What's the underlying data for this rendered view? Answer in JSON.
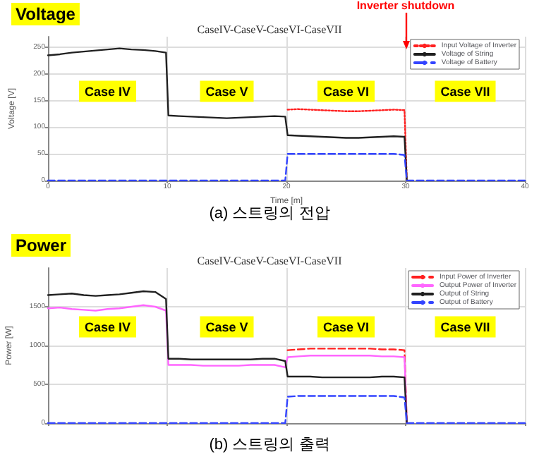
{
  "chart_data": [
    {
      "type": "line",
      "title": "CaseIV-CaseV-CaseVI-CaseVII",
      "xlabel": "Time [m]",
      "ylabel": "Voltage [V]",
      "xlim": [
        0,
        40
      ],
      "xticks": [
        0,
        10,
        20,
        30,
        40
      ],
      "ylim": [
        0,
        270
      ],
      "yticks": [
        0,
        50,
        100,
        150,
        200,
        250
      ],
      "grid": true,
      "legend": "right",
      "marker": "none",
      "x": [
        0,
        1,
        2,
        3,
        4,
        5,
        6,
        7,
        8,
        9,
        9.9,
        10.1,
        11,
        12,
        13,
        14,
        15,
        16,
        17,
        18,
        19,
        19.9,
        20.1,
        21,
        22,
        23,
        24,
        25,
        26,
        27,
        28,
        29,
        29.9,
        30.1,
        31,
        32,
        33,
        34,
        35,
        36,
        37,
        38,
        39,
        40
      ],
      "series": [
        {
          "name": "Input Voltage of Inverter",
          "color": "#ff2020",
          "line_style": "dotted",
          "values": [
            null,
            null,
            null,
            null,
            null,
            null,
            null,
            null,
            null,
            null,
            null,
            null,
            null,
            null,
            null,
            null,
            null,
            null,
            null,
            null,
            null,
            null,
            133,
            134,
            133,
            132,
            131,
            130,
            130,
            131,
            132,
            133,
            132,
            0,
            null,
            null,
            null,
            null,
            null,
            null,
            null,
            null,
            null,
            null
          ]
        },
        {
          "name": "Voltage of String",
          "color": "#202020",
          "line_style": "solid",
          "values": [
            235,
            237,
            240,
            242,
            244,
            246,
            248,
            246,
            245,
            243,
            240,
            122,
            121,
            120,
            119,
            118,
            117,
            118,
            119,
            120,
            121,
            120,
            85,
            84,
            83,
            82,
            81,
            80,
            80,
            81,
            82,
            83,
            82,
            0,
            null,
            null,
            null,
            null,
            null,
            null,
            null,
            null,
            null,
            null
          ]
        },
        {
          "name": "Voltage of Battery",
          "color": "#3344ff",
          "line_style": "dashed",
          "values": [
            0,
            0,
            0,
            0,
            0,
            0,
            0,
            0,
            0,
            0,
            0,
            0,
            0,
            0,
            0,
            0,
            0,
            0,
            0,
            0,
            0,
            0,
            50,
            50,
            50,
            50,
            50,
            50,
            50,
            50,
            50,
            50,
            48,
            0,
            0,
            0,
            0,
            0,
            0,
            0,
            0,
            0,
            0,
            0
          ]
        }
      ],
      "ref_lines": [
        {
          "axis": "x",
          "value": 30,
          "label": "Inverter shutdown",
          "color": "#ff0000"
        }
      ],
      "annotations": [
        "Voltage",
        "Case IV",
        "Case V",
        "Case VI",
        "Case VII",
        "(a) 스트링의 전압"
      ]
    },
    {
      "type": "line",
      "title": "CaseIV-CaseV-CaseVI-CaseVII",
      "ylabel": "Power [W]",
      "xlim": [
        0,
        40
      ],
      "xticks": [
        0,
        10,
        20,
        30,
        40
      ],
      "ylim": [
        0,
        2000
      ],
      "yticks": [
        0,
        500,
        1000,
        1500
      ],
      "grid": true,
      "legend": "right",
      "marker": "none",
      "tick_labels": "y",
      "x": [
        0,
        1,
        2,
        3,
        4,
        5,
        6,
        7,
        8,
        9,
        9.9,
        10.1,
        11,
        12,
        13,
        14,
        15,
        16,
        17,
        18,
        19,
        19.9,
        20.1,
        21,
        22,
        23,
        24,
        25,
        26,
        27,
        28,
        29,
        29.9,
        30.1,
        31,
        32,
        33,
        34,
        35,
        36,
        37,
        38,
        39,
        40
      ],
      "series": [
        {
          "name": "Input Power of Inverter",
          "color": "#ff2020",
          "line_style": "dashed",
          "values": [
            null,
            null,
            null,
            null,
            null,
            null,
            null,
            null,
            null,
            null,
            null,
            null,
            null,
            null,
            null,
            null,
            null,
            null,
            null,
            null,
            null,
            null,
            940,
            950,
            960,
            960,
            960,
            960,
            960,
            960,
            950,
            950,
            940,
            0,
            null,
            null,
            null,
            null,
            null,
            null,
            null,
            null,
            null,
            null
          ]
        },
        {
          "name": "Output Power of Inverter",
          "color": "#ff66ff",
          "line_style": "solid",
          "values": [
            1480,
            1490,
            1470,
            1460,
            1450,
            1470,
            1480,
            1500,
            1520,
            1500,
            1450,
            750,
            750,
            750,
            740,
            740,
            740,
            740,
            750,
            750,
            750,
            720,
            850,
            860,
            870,
            870,
            870,
            870,
            870,
            870,
            860,
            860,
            850,
            0,
            null,
            null,
            null,
            null,
            null,
            null,
            null,
            null,
            null,
            null
          ]
        },
        {
          "name": "Output of String",
          "color": "#202020",
          "line_style": "solid",
          "values": [
            1650,
            1660,
            1670,
            1650,
            1640,
            1650,
            1660,
            1680,
            1700,
            1690,
            1600,
            830,
            830,
            820,
            820,
            820,
            820,
            820,
            820,
            830,
            830,
            800,
            600,
            600,
            600,
            590,
            590,
            590,
            590,
            590,
            600,
            600,
            590,
            0,
            null,
            null,
            null,
            null,
            null,
            null,
            null,
            null,
            null,
            null
          ]
        },
        {
          "name": "Output of Battery",
          "color": "#3344ff",
          "line_style": "dashed",
          "values": [
            0,
            0,
            0,
            0,
            0,
            0,
            0,
            0,
            0,
            0,
            0,
            0,
            0,
            0,
            0,
            0,
            0,
            0,
            0,
            0,
            0,
            0,
            340,
            350,
            350,
            350,
            350,
            350,
            350,
            350,
            350,
            350,
            330,
            0,
            0,
            0,
            0,
            0,
            0,
            0,
            0,
            0,
            0,
            0
          ]
        }
      ],
      "annotations": [
        "Power",
        "Case IV",
        "Case V",
        "Case VI",
        "Case VII",
        "(b) 스트링의 출력"
      ]
    }
  ]
}
